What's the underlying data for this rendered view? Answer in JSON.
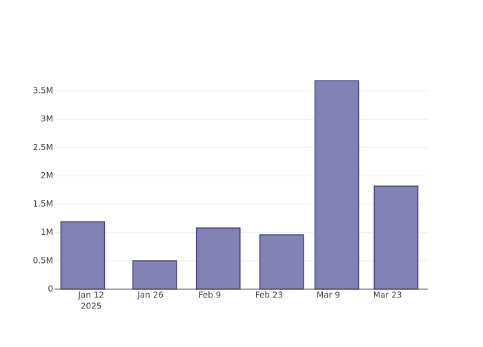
{
  "chart_data": {
    "type": "bar",
    "x": [
      "2025-01-10",
      "2025-01-27",
      "2025-02-11",
      "2025-02-26",
      "2025-03-11",
      "2025-03-25"
    ],
    "values": [
      1190000,
      500000,
      1080000,
      960000,
      3680000,
      1820000
    ],
    "color": "#7b7bb0",
    "edge_color": "#474785",
    "xlim": [
      "2025-01-03T12:00",
      "2025-04-01T12:00"
    ],
    "xticks": [
      {
        "value": "2025-01-12",
        "label": "Jan 12"
      },
      {
        "value": "2025-01-26",
        "label": "Jan 26"
      },
      {
        "value": "2025-02-09",
        "label": "Feb 9"
      },
      {
        "value": "2025-02-23",
        "label": "Feb 23"
      },
      {
        "value": "2025-03-09",
        "label": "Mar 9"
      },
      {
        "value": "2025-03-23",
        "label": "Mar 23"
      }
    ],
    "x_year_label": "2025",
    "ylim": [
      0,
      3890000
    ],
    "yticks": [
      0,
      {
        "value": 500000,
        "label": "0.5M"
      },
      {
        "value": 1000000,
        "label": "1M"
      },
      {
        "value": 1500000,
        "label": "1.5M"
      },
      {
        "value": 2000000,
        "label": "2M"
      },
      {
        "value": 2500000,
        "label": "2.5M"
      },
      {
        "value": 3000000,
        "label": "3M"
      },
      {
        "value": 3500000,
        "label": "3.5M"
      }
    ],
    "grid": true
  }
}
